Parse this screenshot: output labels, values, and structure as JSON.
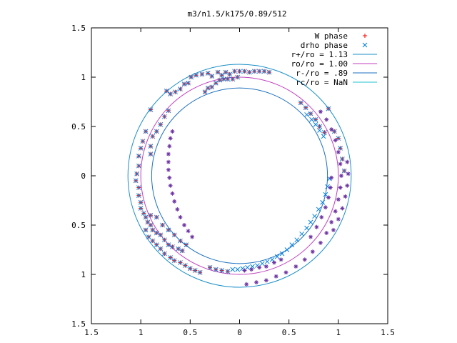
{
  "chart_data": {
    "type": "scatter",
    "title": "m3/n1.5/k175/0.89/512",
    "xlabel": "",
    "ylabel": "",
    "xlim": [
      -1.5,
      1.5
    ],
    "ylim": [
      -1.5,
      1.5
    ],
    "grid": false,
    "legend_position": "top-right",
    "x_ticks": [
      {
        "value": -1.5,
        "label": "1.5"
      },
      {
        "value": -1.0,
        "label": "1"
      },
      {
        "value": -0.5,
        "label": "0.5"
      },
      {
        "value": 0.0,
        "label": "0"
      },
      {
        "value": 0.5,
        "label": "0.5"
      },
      {
        "value": 1.0,
        "label": "1"
      },
      {
        "value": 1.5,
        "label": "1.5"
      }
    ],
    "y_ticks": [
      {
        "value": 1.5,
        "label": "1.5"
      },
      {
        "value": 1.0,
        "label": "1"
      },
      {
        "value": 0.5,
        "label": "0.5"
      },
      {
        "value": 0.0,
        "label": "0"
      },
      {
        "value": -0.5,
        "label": "0.5"
      },
      {
        "value": -1.0,
        "label": "1"
      },
      {
        "value": -1.5,
        "label": "1.5"
      }
    ],
    "series": [
      {
        "name": "W phase",
        "marker": "+",
        "color": "#ff0000",
        "points": [
          [
            -0.49,
            1.0
          ],
          [
            -0.44,
            1.02
          ],
          [
            -0.38,
            1.03
          ],
          [
            -0.32,
            1.04
          ],
          [
            -0.28,
            1.01
          ],
          [
            -0.22,
            1.05
          ],
          [
            -0.18,
            1.02
          ],
          [
            -0.14,
            1.05
          ],
          [
            -0.1,
            1.03
          ],
          [
            -0.05,
            1.06
          ],
          [
            0.0,
            1.06
          ],
          [
            0.05,
            1.06
          ],
          [
            0.1,
            1.05
          ],
          [
            0.15,
            1.06
          ],
          [
            0.2,
            1.06
          ],
          [
            0.25,
            1.06
          ],
          [
            0.3,
            1.05
          ],
          [
            -0.74,
            0.86
          ],
          [
            -0.7,
            0.83
          ],
          [
            -0.65,
            0.85
          ],
          [
            -0.6,
            0.88
          ],
          [
            -0.56,
            0.93
          ],
          [
            -0.52,
            0.94
          ],
          [
            -0.35,
            0.85
          ],
          [
            -0.32,
            0.89
          ],
          [
            -0.28,
            0.9
          ],
          [
            -0.24,
            0.94
          ],
          [
            -0.2,
            0.97
          ],
          [
            -0.16,
            0.98
          ],
          [
            -0.12,
            0.98
          ],
          [
            -0.07,
            0.98
          ],
          [
            -0.02,
            1.0
          ],
          [
            -0.9,
            0.67
          ],
          [
            -0.72,
            0.66
          ],
          [
            -0.76,
            0.6
          ],
          [
            -0.8,
            0.52
          ],
          [
            -0.84,
            0.45
          ],
          [
            -0.88,
            0.4
          ],
          [
            -0.9,
            0.3
          ],
          [
            -0.9,
            0.22
          ],
          [
            -0.95,
            0.45
          ],
          [
            -0.98,
            0.35
          ],
          [
            -1.0,
            0.28
          ],
          [
            -1.02,
            0.2
          ],
          [
            -1.02,
            0.1
          ],
          [
            -1.04,
            0.02
          ],
          [
            -1.05,
            -0.05
          ],
          [
            -1.02,
            -0.12
          ],
          [
            -1.02,
            -0.2
          ],
          [
            -1.0,
            -0.27
          ],
          [
            -1.0,
            -0.33
          ],
          [
            -0.97,
            -0.38
          ],
          [
            -0.95,
            -0.42
          ],
          [
            -0.93,
            -0.47
          ],
          [
            -0.9,
            -0.5
          ],
          [
            -0.88,
            -0.55
          ],
          [
            -0.84,
            -0.58
          ],
          [
            -0.8,
            -0.6
          ],
          [
            -0.76,
            -0.65
          ],
          [
            -0.72,
            -0.7
          ],
          [
            -0.68,
            -0.72
          ],
          [
            -0.62,
            -0.74
          ],
          [
            -0.58,
            -0.76
          ],
          [
            -0.54,
            -0.7
          ],
          [
            -0.6,
            -0.66
          ],
          [
            -0.66,
            -0.6
          ],
          [
            -0.72,
            -0.55
          ],
          [
            -0.78,
            -0.5
          ],
          [
            -0.84,
            -0.42
          ],
          [
            -0.9,
            -0.4
          ],
          [
            -0.95,
            -0.55
          ],
          [
            -0.92,
            -0.62
          ],
          [
            -0.88,
            -0.66
          ],
          [
            -0.84,
            -0.7
          ],
          [
            -0.8,
            -0.74
          ],
          [
            -0.76,
            -0.79
          ],
          [
            -0.7,
            -0.83
          ],
          [
            -0.66,
            -0.86
          ],
          [
            -0.6,
            -0.88
          ],
          [
            -0.55,
            -0.91
          ],
          [
            -0.5,
            -0.94
          ],
          [
            -0.45,
            -0.96
          ],
          [
            -0.4,
            -0.98
          ],
          [
            -0.3,
            -0.93
          ],
          [
            -0.24,
            -0.95
          ],
          [
            -0.18,
            -0.96
          ],
          [
            -0.12,
            -0.97
          ],
          [
            0.9,
            0.68
          ],
          [
            0.62,
            0.74
          ],
          [
            0.67,
            0.69
          ],
          [
            0.72,
            0.63
          ],
          [
            0.77,
            0.57
          ],
          [
            0.81,
            0.5
          ],
          [
            0.86,
            0.44
          ],
          [
            0.96,
            0.45
          ],
          [
            1.0,
            0.38
          ],
          [
            1.02,
            0.28
          ],
          [
            1.04,
            0.17
          ],
          [
            1.06,
            0.05
          ]
        ]
      },
      {
        "name": "drho phase",
        "marker": "x",
        "color": "#0080e0",
        "points": [
          [
            -0.49,
            1.0
          ],
          [
            -0.44,
            1.02
          ],
          [
            -0.38,
            1.03
          ],
          [
            -0.32,
            1.04
          ],
          [
            -0.28,
            1.01
          ],
          [
            -0.22,
            1.05
          ],
          [
            -0.18,
            1.02
          ],
          [
            -0.14,
            1.05
          ],
          [
            -0.1,
            1.03
          ],
          [
            -0.05,
            1.06
          ],
          [
            0.0,
            1.06
          ],
          [
            0.05,
            1.06
          ],
          [
            0.1,
            1.05
          ],
          [
            0.15,
            1.06
          ],
          [
            0.2,
            1.06
          ],
          [
            0.25,
            1.06
          ],
          [
            0.3,
            1.05
          ],
          [
            -0.74,
            0.86
          ],
          [
            -0.7,
            0.83
          ],
          [
            -0.65,
            0.85
          ],
          [
            -0.6,
            0.88
          ],
          [
            -0.56,
            0.93
          ],
          [
            -0.52,
            0.94
          ],
          [
            -0.35,
            0.85
          ],
          [
            -0.32,
            0.89
          ],
          [
            -0.28,
            0.9
          ],
          [
            -0.24,
            0.94
          ],
          [
            -0.2,
            0.97
          ],
          [
            -0.16,
            0.98
          ],
          [
            -0.12,
            0.98
          ],
          [
            -0.07,
            0.98
          ],
          [
            -0.02,
            1.0
          ],
          [
            -0.9,
            0.67
          ],
          [
            -0.72,
            0.66
          ],
          [
            -0.76,
            0.6
          ],
          [
            -0.8,
            0.52
          ],
          [
            -0.84,
            0.45
          ],
          [
            -0.88,
            0.4
          ],
          [
            -0.9,
            0.3
          ],
          [
            -0.9,
            0.22
          ],
          [
            -0.95,
            0.45
          ],
          [
            -0.98,
            0.35
          ],
          [
            -1.0,
            0.28
          ],
          [
            -1.02,
            0.2
          ],
          [
            -1.02,
            0.1
          ],
          [
            -1.04,
            0.02
          ],
          [
            -1.05,
            -0.05
          ],
          [
            -1.02,
            -0.12
          ],
          [
            -1.02,
            -0.2
          ],
          [
            -1.0,
            -0.27
          ],
          [
            -1.0,
            -0.33
          ],
          [
            -0.97,
            -0.38
          ],
          [
            -0.95,
            -0.42
          ],
          [
            -0.93,
            -0.47
          ],
          [
            -0.9,
            -0.5
          ],
          [
            -0.88,
            -0.55
          ],
          [
            -0.84,
            -0.58
          ],
          [
            -0.8,
            -0.6
          ],
          [
            -0.76,
            -0.65
          ],
          [
            -0.72,
            -0.7
          ],
          [
            -0.68,
            -0.72
          ],
          [
            -0.62,
            -0.74
          ],
          [
            -0.58,
            -0.76
          ],
          [
            -0.54,
            -0.7
          ],
          [
            -0.6,
            -0.66
          ],
          [
            -0.66,
            -0.6
          ],
          [
            -0.72,
            -0.55
          ],
          [
            -0.78,
            -0.5
          ],
          [
            -0.84,
            -0.42
          ],
          [
            -0.9,
            -0.4
          ],
          [
            -0.95,
            -0.55
          ],
          [
            -0.92,
            -0.62
          ],
          [
            -0.88,
            -0.66
          ],
          [
            -0.84,
            -0.7
          ],
          [
            -0.8,
            -0.74
          ],
          [
            -0.76,
            -0.79
          ],
          [
            -0.7,
            -0.83
          ],
          [
            -0.66,
            -0.86
          ],
          [
            -0.6,
            -0.88
          ],
          [
            -0.55,
            -0.91
          ],
          [
            -0.5,
            -0.94
          ],
          [
            -0.45,
            -0.96
          ],
          [
            -0.4,
            -0.98
          ],
          [
            -0.3,
            -0.93
          ],
          [
            -0.24,
            -0.95
          ],
          [
            -0.18,
            -0.96
          ],
          [
            -0.12,
            -0.97
          ],
          [
            0.9,
            0.68
          ],
          [
            0.62,
            0.74
          ],
          [
            0.67,
            0.69
          ],
          [
            0.72,
            0.63
          ],
          [
            0.77,
            0.57
          ],
          [
            0.81,
            0.5
          ],
          [
            0.86,
            0.44
          ],
          [
            0.96,
            0.45
          ],
          [
            1.0,
            0.38
          ],
          [
            1.02,
            0.28
          ],
          [
            1.04,
            0.17
          ],
          [
            1.06,
            0.05
          ],
          [
            -0.07,
            -0.95
          ],
          [
            -0.02,
            -0.95
          ],
          [
            0.03,
            -0.94
          ],
          [
            0.08,
            -0.93
          ],
          [
            0.13,
            -0.92
          ],
          [
            0.18,
            -0.91
          ],
          [
            0.23,
            -0.89
          ],
          [
            0.28,
            -0.87
          ],
          [
            0.33,
            -0.85
          ],
          [
            0.38,
            -0.82
          ],
          [
            0.43,
            -0.79
          ],
          [
            0.48,
            -0.75
          ],
          [
            0.53,
            -0.7
          ],
          [
            0.58,
            -0.65
          ],
          [
            0.63,
            -0.59
          ],
          [
            0.68,
            -0.53
          ],
          [
            0.72,
            -0.47
          ],
          [
            0.76,
            -0.41
          ],
          [
            0.8,
            -0.34
          ],
          [
            0.84,
            -0.27
          ],
          [
            0.87,
            -0.19
          ],
          [
            0.89,
            -0.11
          ],
          [
            0.91,
            -0.03
          ],
          [
            0.68,
            0.62
          ],
          [
            0.73,
            0.57
          ],
          [
            0.77,
            0.52
          ],
          [
            0.81,
            0.46
          ],
          [
            0.85,
            0.4
          ]
        ]
      },
      {
        "name": "",
        "marker": "*",
        "color": "#6a2fa0",
        "points": [
          [
            0.07,
            -1.1
          ],
          [
            0.17,
            -1.08
          ],
          [
            0.27,
            -1.06
          ],
          [
            0.37,
            -1.02
          ],
          [
            0.47,
            -0.98
          ],
          [
            0.57,
            -0.92
          ],
          [
            0.66,
            -0.85
          ],
          [
            0.74,
            -0.77
          ],
          [
            0.82,
            -0.68
          ],
          [
            0.88,
            -0.58
          ],
          [
            0.93,
            -0.47
          ],
          [
            0.97,
            -0.36
          ],
          [
            1.0,
            -0.24
          ],
          [
            1.02,
            -0.12
          ],
          [
            1.03,
            0.0
          ],
          [
            1.02,
            0.12
          ],
          [
            1.0,
            0.24
          ],
          [
            0.97,
            0.36
          ],
          [
            0.93,
            0.47
          ],
          [
            0.88,
            0.57
          ],
          [
            0.82,
            0.65
          ],
          [
            0.95,
            -0.55
          ],
          [
            1.0,
            -0.44
          ],
          [
            1.04,
            -0.33
          ],
          [
            1.07,
            -0.21
          ],
          [
            1.09,
            -0.1
          ],
          [
            1.1,
            0.02
          ],
          [
            1.09,
            0.14
          ],
          [
            0.72,
            -0.62
          ],
          [
            0.78,
            -0.52
          ],
          [
            0.83,
            -0.42
          ],
          [
            0.87,
            -0.32
          ],
          [
            0.9,
            -0.22
          ],
          [
            0.92,
            -0.12
          ],
          [
            0.93,
            -0.02
          ],
          [
            0.05,
            -0.96
          ],
          [
            0.12,
            -0.95
          ],
          [
            0.2,
            -0.93
          ],
          [
            0.27,
            -0.92
          ],
          [
            0.35,
            -0.88
          ],
          [
            0.42,
            -0.85
          ],
          [
            -0.68,
            0.45
          ],
          [
            -0.7,
            0.38
          ],
          [
            -0.71,
            0.3
          ],
          [
            -0.72,
            0.22
          ],
          [
            -0.72,
            0.14
          ],
          [
            -0.72,
            0.06
          ],
          [
            -0.71,
            -0.02
          ],
          [
            -0.7,
            -0.1
          ],
          [
            -0.68,
            -0.18
          ],
          [
            -0.66,
            -0.26
          ],
          [
            -0.63,
            -0.34
          ],
          [
            -0.6,
            -0.42
          ],
          [
            -0.56,
            -0.5
          ],
          [
            -0.52,
            -0.56
          ],
          [
            -0.48,
            -0.62
          ]
        ]
      }
    ],
    "circles": [
      {
        "name": "r+/ro = 1.13",
        "r": 1.13,
        "color": "#1b8fc8"
      },
      {
        "name": "ro/ro = 1.00",
        "r": 1.0,
        "color": "#c040c0"
      },
      {
        "name": "r-/ro = .89",
        "r": 0.89,
        "color": "#1b6fc0"
      },
      {
        "name": "rc/ro = NaN",
        "r": null,
        "color": "#20c0d0"
      }
    ]
  }
}
